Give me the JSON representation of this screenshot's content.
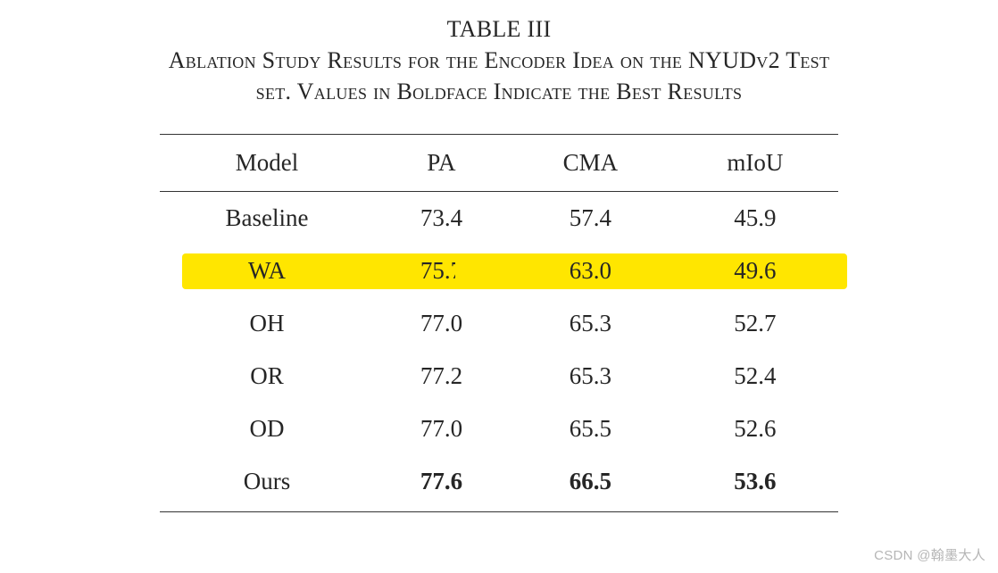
{
  "caption": {
    "label": "TABLE III",
    "line1": "Ablation Study Results for the Encoder Idea on the NYUDv2 Test",
    "line2": "set. Values in Boldface Indicate the Best Results"
  },
  "table": {
    "columns": [
      "Model",
      "PA",
      "CMA",
      "mIoU"
    ],
    "rows": [
      {
        "model": "Baseline",
        "pa": "73.4",
        "cma": "57.4",
        "miou": "45.9",
        "bold": false,
        "highlight": false
      },
      {
        "model": "WA",
        "pa": "75.7",
        "cma": "63.0",
        "miou": "49.6",
        "bold": false,
        "highlight": true
      },
      {
        "model": "OH",
        "pa": "77.0",
        "cma": "65.3",
        "miou": "52.7",
        "bold": false,
        "highlight": false
      },
      {
        "model": "OR",
        "pa": "77.2",
        "cma": "65.3",
        "miou": "52.4",
        "bold": false,
        "highlight": false
      },
      {
        "model": "OD",
        "pa": "77.0",
        "cma": "65.5",
        "miou": "52.6",
        "bold": false,
        "highlight": false
      },
      {
        "model": "Ours",
        "pa": "77.6",
        "cma": "66.5",
        "miou": "53.6",
        "bold": true,
        "highlight": false
      }
    ],
    "highlight_color": "#ffe600",
    "border_color": "#333333",
    "font_family": "Times New Roman",
    "header_fontsize": 27,
    "cell_fontsize": 27
  },
  "watermark": "CSDN @翰墨大人"
}
